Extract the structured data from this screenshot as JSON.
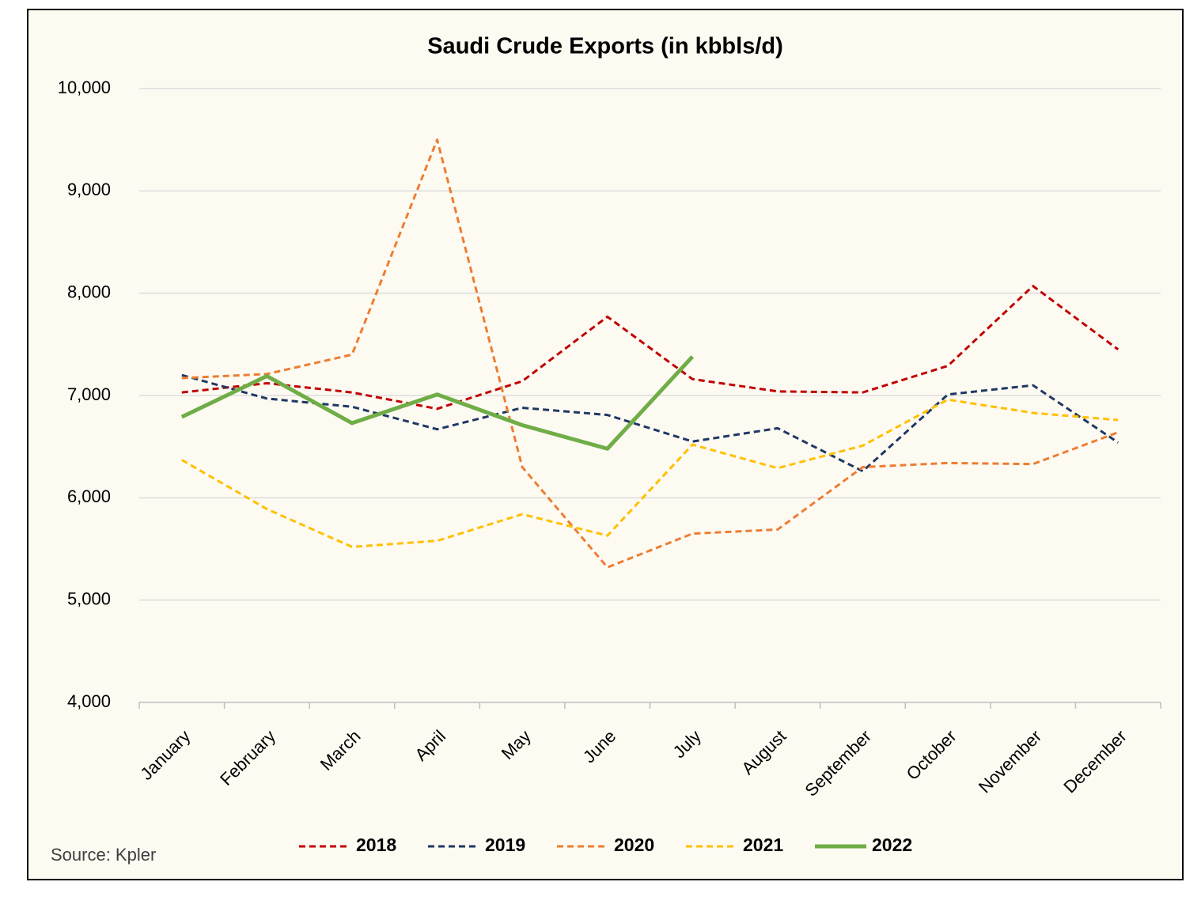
{
  "chart_data": {
    "type": "line",
    "title": "Saudi Crude Exports (in kbbls/d)",
    "source": "Source: Kpler",
    "categories": [
      "January",
      "February",
      "March",
      "April",
      "May",
      "June",
      "July",
      "August",
      "September",
      "October",
      "November",
      "December"
    ],
    "series": [
      {
        "name": "2018",
        "color": "#c00000",
        "style": "dashed",
        "values": [
          7030,
          7120,
          7030,
          6870,
          7140,
          7770,
          7160,
          7040,
          7030,
          7290,
          8070,
          7450
        ]
      },
      {
        "name": "2019",
        "color": "#1f3864",
        "style": "dashed",
        "values": [
          7200,
          6970,
          6890,
          6670,
          6880,
          6810,
          6550,
          6680,
          6260,
          7010,
          7100,
          6540
        ]
      },
      {
        "name": "2020",
        "color": "#ed7d31",
        "style": "dashed",
        "values": [
          7170,
          7210,
          7400,
          9500,
          6300,
          5320,
          5650,
          5690,
          6300,
          6340,
          6330,
          6640
        ]
      },
      {
        "name": "2021",
        "color": "#ffc000",
        "style": "dashed",
        "values": [
          6370,
          5890,
          5520,
          5580,
          5840,
          5630,
          6520,
          6290,
          6510,
          6960,
          6830,
          6760
        ]
      },
      {
        "name": "2022",
        "color": "#70ad47",
        "style": "solid",
        "values": [
          6790,
          7190,
          6730,
          7010,
          6710,
          6480,
          7380,
          null,
          null,
          null,
          null,
          null
        ]
      }
    ],
    "ylim": [
      4000,
      10000
    ],
    "yticks": [
      {
        "value": 4000,
        "label": "4,000"
      },
      {
        "value": 5000,
        "label": "5,000"
      },
      {
        "value": 6000,
        "label": "6,000"
      },
      {
        "value": 7000,
        "label": "7,000"
      },
      {
        "value": 8000,
        "label": "8,000"
      },
      {
        "value": 9000,
        "label": "9,000"
      },
      {
        "value": 10000,
        "label": "10,000"
      }
    ],
    "grid": true,
    "legend": "bottom"
  }
}
